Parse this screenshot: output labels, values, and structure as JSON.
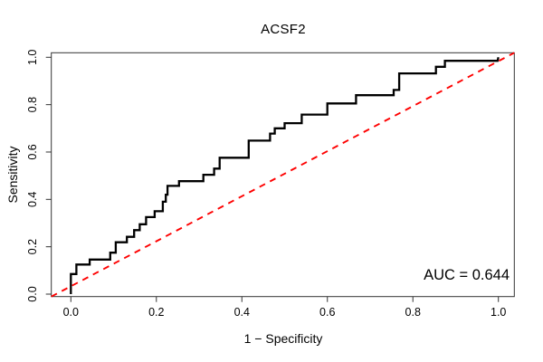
{
  "title": "ACSF2",
  "chart_data": {
    "type": "line",
    "subtype": "roc_step_curve",
    "title": "ACSF2",
    "xlabel": "1 − Specificity",
    "ylabel": "Sensitivity",
    "xlim": [
      0,
      1
    ],
    "ylim": [
      0,
      1
    ],
    "grid": false,
    "legend": null,
    "x_ticks": {
      "values": [
        0.0,
        0.2,
        0.4,
        0.6,
        0.8,
        1.0
      ],
      "labels": [
        "0.0",
        "0.2",
        "0.4",
        "0.6",
        "0.8",
        "1.0"
      ]
    },
    "y_ticks": {
      "values": [
        0.0,
        0.2,
        0.4,
        0.6,
        0.8,
        1.0
      ],
      "labels": [
        "0.0",
        "0.2",
        "0.4",
        "0.6",
        "0.8",
        "1.0"
      ]
    },
    "annotation": {
      "label": "AUC = 0.644",
      "auc_value": 0.644
    },
    "colors": {
      "curve": "#000000",
      "reference": "#fe0000",
      "axis": "#333333",
      "background": "#ffffff"
    },
    "series": [
      {
        "name": "roc-curve",
        "style": "solid-step",
        "color": "#000000",
        "line_width": 2.3,
        "extends_to_plot_edges": false,
        "points": [
          [
            0.0,
            0.0
          ],
          [
            0.0,
            0.085
          ],
          [
            0.013,
            0.085
          ],
          [
            0.013,
            0.125
          ],
          [
            0.044,
            0.125
          ],
          [
            0.044,
            0.146
          ],
          [
            0.092,
            0.146
          ],
          [
            0.092,
            0.175
          ],
          [
            0.105,
            0.175
          ],
          [
            0.105,
            0.219
          ],
          [
            0.131,
            0.219
          ],
          [
            0.131,
            0.242
          ],
          [
            0.148,
            0.242
          ],
          [
            0.148,
            0.27
          ],
          [
            0.161,
            0.27
          ],
          [
            0.161,
            0.295
          ],
          [
            0.176,
            0.295
          ],
          [
            0.176,
            0.325
          ],
          [
            0.196,
            0.325
          ],
          [
            0.196,
            0.35
          ],
          [
            0.215,
            0.35
          ],
          [
            0.215,
            0.39
          ],
          [
            0.222,
            0.39
          ],
          [
            0.222,
            0.42
          ],
          [
            0.226,
            0.42
          ],
          [
            0.226,
            0.457
          ],
          [
            0.253,
            0.457
          ],
          [
            0.253,
            0.477
          ],
          [
            0.31,
            0.477
          ],
          [
            0.31,
            0.504
          ],
          [
            0.335,
            0.504
          ],
          [
            0.335,
            0.53
          ],
          [
            0.348,
            0.53
          ],
          [
            0.348,
            0.576
          ],
          [
            0.416,
            0.576
          ],
          [
            0.416,
            0.648
          ],
          [
            0.466,
            0.648
          ],
          [
            0.466,
            0.678
          ],
          [
            0.477,
            0.678
          ],
          [
            0.477,
            0.7
          ],
          [
            0.5,
            0.7
          ],
          [
            0.5,
            0.722
          ],
          [
            0.54,
            0.722
          ],
          [
            0.54,
            0.758
          ],
          [
            0.6,
            0.758
          ],
          [
            0.6,
            0.805
          ],
          [
            0.667,
            0.805
          ],
          [
            0.667,
            0.84
          ],
          [
            0.755,
            0.84
          ],
          [
            0.755,
            0.862
          ],
          [
            0.768,
            0.862
          ],
          [
            0.768,
            0.932
          ],
          [
            0.854,
            0.932
          ],
          [
            0.854,
            0.96
          ],
          [
            0.875,
            0.96
          ],
          [
            0.875,
            0.985
          ],
          [
            0.998,
            0.985
          ],
          [
            1.0,
            1.0
          ]
        ]
      },
      {
        "name": "chance-diagonal",
        "style": "dashed",
        "color": "#fe0000",
        "line_width": 1.9,
        "extends_to_plot_edges": true,
        "points": [
          [
            0.0,
            0.0
          ],
          [
            1.0,
            1.0
          ]
        ]
      }
    ]
  }
}
